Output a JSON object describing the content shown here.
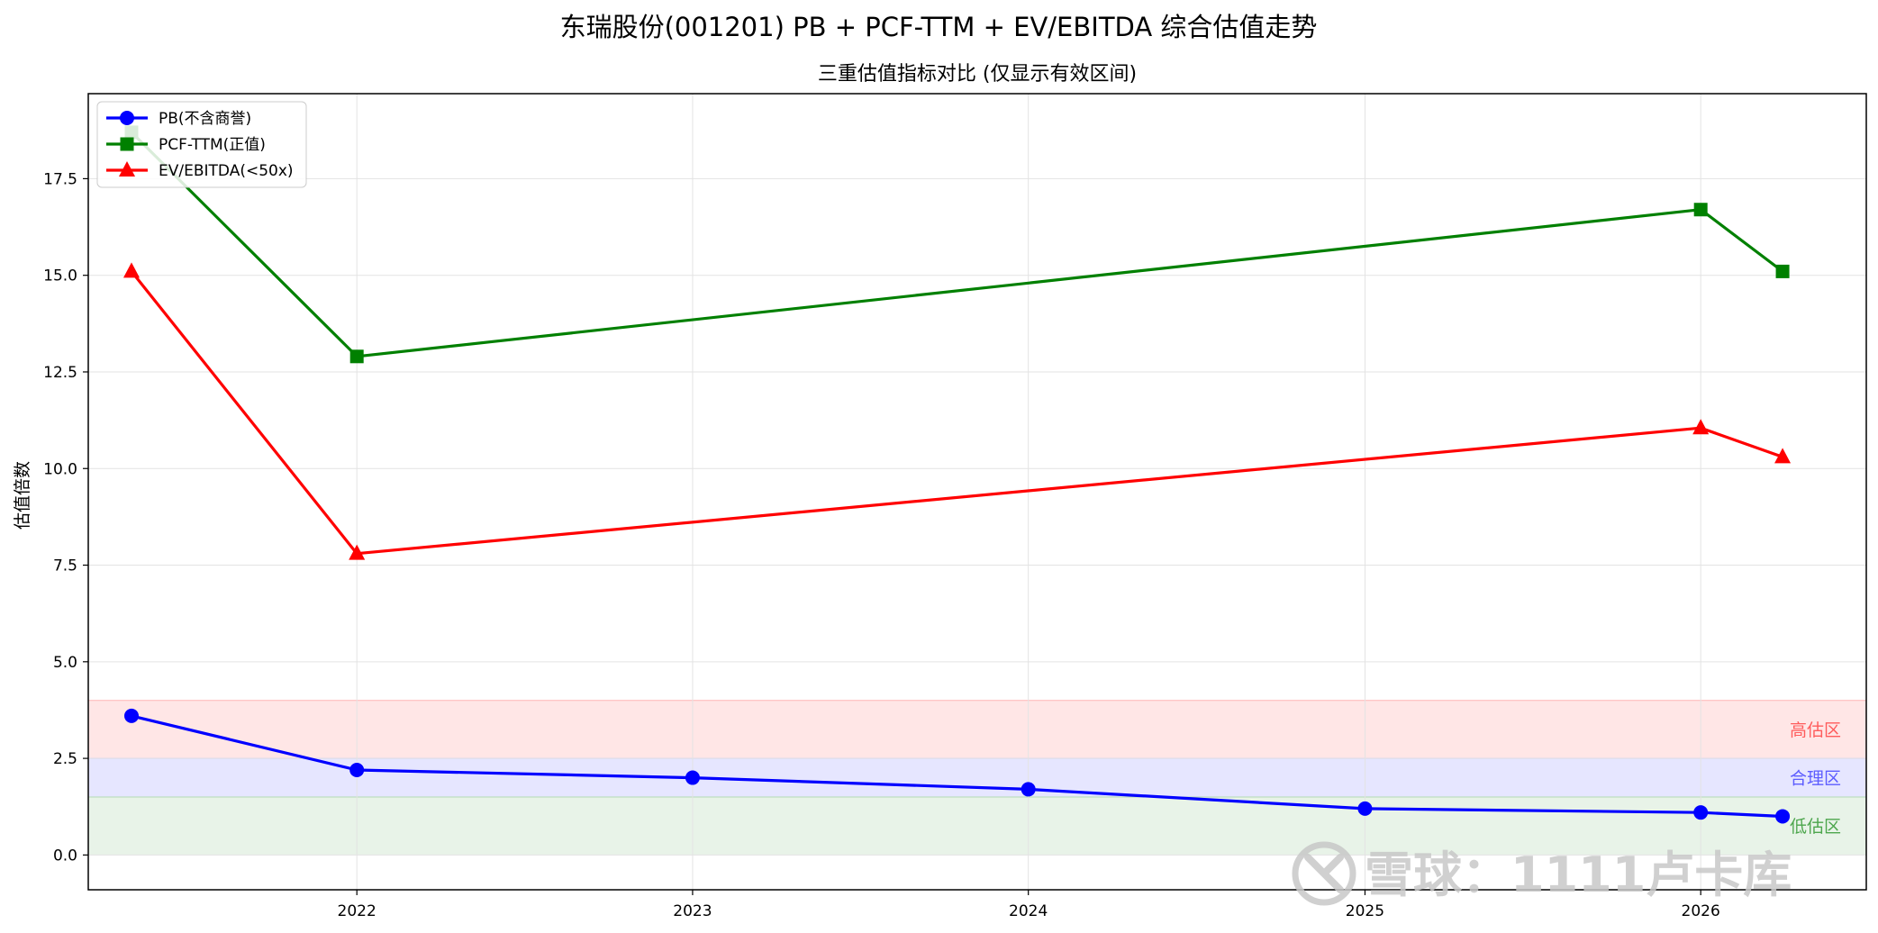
{
  "page": {
    "title": "东瑞股份(001201) PB + PCF-TTM + EV/EBITDA 综合估值走势",
    "subtitle": "三重估值指标对比 (仅显示有效区间)",
    "watermark": "雪球：1111卢卡库"
  },
  "chart_data": {
    "type": "line",
    "title": "三重估值指标对比 (仅显示有效区间)",
    "xlabel": "",
    "ylabel": "估值倍数",
    "xlim": [
      "2021-03-15",
      "2026-06-30"
    ],
    "ylim": [
      -0.9,
      19.7
    ],
    "x_ticks": [
      "2022",
      "2023",
      "2024",
      "2025",
      "2026"
    ],
    "y_ticks": [
      "0.0",
      "2.5",
      "5.0",
      "7.5",
      "10.0",
      "12.5",
      "15.0",
      "17.5"
    ],
    "grid": true,
    "legend_position": "top-left",
    "series": [
      {
        "name": "PB(不含商誉)",
        "color": "#0000ff",
        "marker": "circle",
        "points": [
          {
            "x": "2021-05-01",
            "y": 3.6
          },
          {
            "x": "2022-01-01",
            "y": 2.2
          },
          {
            "x": "2023-01-01",
            "y": 2.0
          },
          {
            "x": "2024-01-01",
            "y": 1.7
          },
          {
            "x": "2025-01-01",
            "y": 1.2
          },
          {
            "x": "2026-01-01",
            "y": 1.1
          },
          {
            "x": "2026-03-31",
            "y": 1.0
          }
        ]
      },
      {
        "name": "PCF-TTM(正值)",
        "color": "#008000",
        "marker": "square",
        "points": [
          {
            "x": "2021-05-01",
            "y": 18.7
          },
          {
            "x": "2022-01-01",
            "y": 12.9
          },
          {
            "x": "2026-01-01",
            "y": 16.7
          },
          {
            "x": "2026-03-31",
            "y": 15.1
          }
        ]
      },
      {
        "name": "EV/EBITDA(<50x)",
        "color": "#ff0000",
        "marker": "triangle",
        "points": [
          {
            "x": "2021-05-01",
            "y": 15.1
          },
          {
            "x": "2022-01-01",
            "y": 7.8
          },
          {
            "x": "2026-01-01",
            "y": 11.05
          },
          {
            "x": "2026-03-31",
            "y": 10.3
          }
        ]
      }
    ],
    "bands": [
      {
        "name": "高估区",
        "y0": 2.5,
        "y1": 4.0,
        "fill": "#ffe6e6",
        "edge": "#ffb3b3",
        "label_color": "#ff5c5c"
      },
      {
        "name": "合理区",
        "y0": 1.5,
        "y1": 2.5,
        "fill": "#e6e6ff",
        "edge": "#b3b3ff",
        "label_color": "#5c5cff"
      },
      {
        "name": "低估区",
        "y0": 0.0,
        "y1": 1.5,
        "fill": "#e8f3e8",
        "edge": "#b3d9b3",
        "label_color": "#4da64d"
      }
    ]
  }
}
